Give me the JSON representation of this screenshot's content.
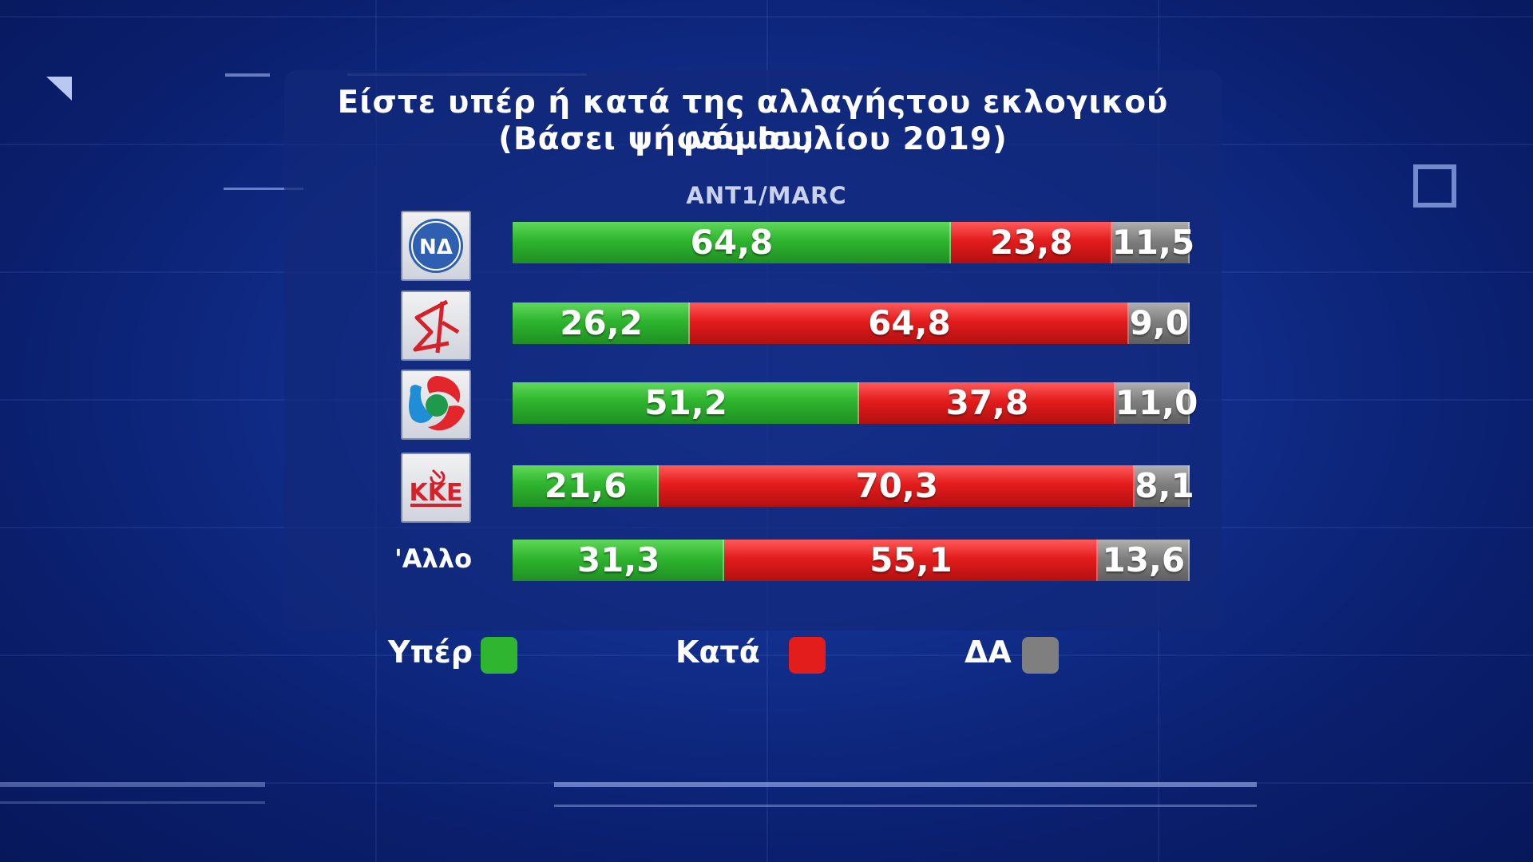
{
  "title_line1": "Είστε υπέρ ή κατά της αλλαγήςτου εκλογικού νόμου;",
  "title_line2": "(Βάσει ψήφου Ιουλίου 2019)",
  "source": "ΑΝΤ1/MARC",
  "colors": {
    "yes": "#2fb52f",
    "no": "#e31c1c",
    "dk": "#7f7f7f"
  },
  "logos": [
    "nd-logo",
    "syriza-logo",
    "pasok-kinal-logo",
    "kke-logo"
  ],
  "logo_texts": {
    "nd": "ΝΔ",
    "kke": "ΚΚΕ"
  },
  "other_label": "'Αλλο",
  "legend": [
    {
      "label": "Υπέρ",
      "color": "#2fb52f"
    },
    {
      "label": "Κατά",
      "color": "#e31c1c"
    },
    {
      "label": "ΔΑ",
      "color": "#7f7f7f"
    }
  ],
  "chart_data": {
    "type": "bar",
    "orientation": "horizontal",
    "stacked": true,
    "categories": [
      "nd-logo",
      "syriza-logo",
      "pasok-kinal-logo",
      "kke-logo",
      "'Αλλο"
    ],
    "series": [
      {
        "name": "Υπέρ",
        "values": [
          64.8,
          26.2,
          51.2,
          21.6,
          31.3
        ],
        "labels": [
          "64,8",
          "26,2",
          "51,2",
          "21,6",
          "31,3"
        ]
      },
      {
        "name": "Κατά",
        "values": [
          23.8,
          64.8,
          37.8,
          70.3,
          55.1
        ],
        "labels": [
          "23,8",
          "64,8",
          "37,8",
          "70,3",
          "55,1"
        ]
      },
      {
        "name": "ΔΑ",
        "values": [
          11.5,
          9.0,
          11.0,
          8.1,
          13.6
        ],
        "labels": [
          "11,5",
          "9,0",
          "11,0",
          "8,1",
          "13,6"
        ]
      }
    ]
  }
}
